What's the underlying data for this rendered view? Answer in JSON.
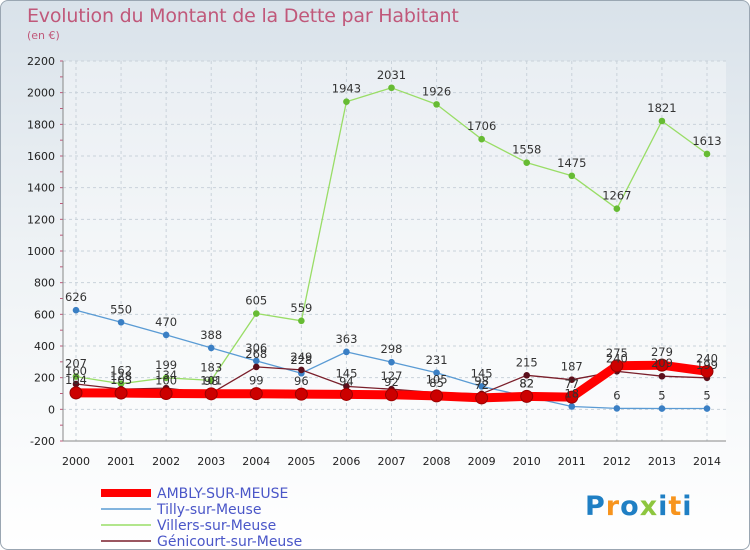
{
  "title": "Evolution du Montant de la Dette par Habitant",
  "subtitle": "(en €)",
  "logo": {
    "text": "Proxiti",
    "colors": [
      "#1f7fc4",
      "#f7941d",
      "#1f7fc4",
      "#8dc63f",
      "#1f7fc4",
      "#f7941d",
      "#1f7fc4"
    ]
  },
  "chart_data": {
    "type": "line",
    "title": "Evolution du Montant de la Dette par Habitant",
    "subtitle": "(en €)",
    "xlabel": "",
    "ylabel": "",
    "x": [
      "2000",
      "2001",
      "2002",
      "2003",
      "2004",
      "2005",
      "2006",
      "2007",
      "2008",
      "2009",
      "2010",
      "2011",
      "2012",
      "2013",
      "2014"
    ],
    "ylim": [
      -200,
      2200
    ],
    "yticks": [
      -200,
      0,
      200,
      400,
      600,
      800,
      1000,
      1200,
      1400,
      1600,
      1800,
      2000,
      2200
    ],
    "grid": true,
    "legend_position": "bottom-left",
    "series": [
      {
        "name": "AMBLY-SUR-MEUSE",
        "color": "#ff0000",
        "marker": "#cc0000",
        "width": 9,
        "values": [
          104,
          103,
          100,
          98,
          99,
          96,
          94,
          92,
          85,
          72,
          82,
          77,
          275,
          279,
          240
        ],
        "labels": [
          "104",
          "103",
          "100",
          "98",
          "99",
          "96",
          "94",
          "92",
          "85",
          "72",
          "82",
          "77",
          "275",
          "279",
          "240"
        ]
      },
      {
        "name": "Tilly-sur-Meuse",
        "color": "#5a9bd4",
        "marker": "#3a7fc4",
        "width": 1.3,
        "values": [
          626,
          550,
          470,
          388,
          306,
          228,
          363,
          298,
          231,
          145,
          82,
          18,
          6,
          5,
          5
        ],
        "labels": [
          "626",
          "550",
          "470",
          "388",
          "306",
          "228",
          "363",
          "298",
          "231",
          "145",
          "82",
          "18",
          "6",
          "5",
          "5"
        ]
      },
      {
        "name": "Villers-sur-Meuse",
        "color": "#99dd66",
        "marker": "#66bb33",
        "width": 1.3,
        "values": [
          207,
          162,
          199,
          183,
          605,
          559,
          1943,
          2031,
          1926,
          1706,
          1558,
          1475,
          1267,
          1821,
          1613
        ],
        "labels": [
          "207",
          "162",
          "199",
          "183",
          "605",
          "559",
          "1943",
          "2031",
          "1926",
          "1706",
          "1558",
          "1475",
          "1267",
          "1821",
          "1613"
        ]
      },
      {
        "name": "Génicourt-sur-Meuse",
        "color": "#7a1f2b",
        "marker": "#5a0f1b",
        "width": 1.3,
        "values": [
          160,
          128,
          134,
          101,
          268,
          249,
          145,
          127,
          105,
          98,
          215,
          187,
          240,
          209,
          199
        ],
        "labels": [
          "160",
          "128",
          "134",
          "101",
          "268",
          "249",
          "145",
          "127",
          "105",
          "98",
          "215",
          "187",
          "240",
          "209",
          "199"
        ]
      }
    ]
  }
}
